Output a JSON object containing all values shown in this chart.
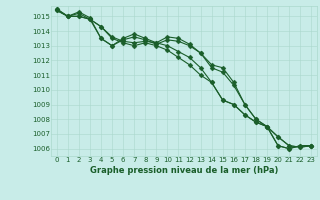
{
  "title": "Graphe pression niveau de la mer (hPa)",
  "background_color": "#c8ece8",
  "grid_color": "#aad8cc",
  "line_color": "#1a5e2a",
  "marker_color": "#1a5e2a",
  "ylim": [
    1005.5,
    1015.7
  ],
  "xlim": [
    -0.5,
    23.5
  ],
  "yticks": [
    1006,
    1007,
    1008,
    1009,
    1010,
    1011,
    1012,
    1013,
    1014,
    1015
  ],
  "xticks": [
    0,
    1,
    2,
    3,
    4,
    5,
    6,
    7,
    8,
    9,
    10,
    11,
    12,
    13,
    14,
    15,
    16,
    17,
    18,
    19,
    20,
    21,
    22,
    23
  ],
  "series": [
    [
      1015.4,
      1015.0,
      1015.0,
      1014.8,
      1014.3,
      1013.6,
      1013.3,
      1013.2,
      1013.3,
      1013.2,
      1013.0,
      1012.6,
      1012.2,
      1011.5,
      1010.5,
      1009.3,
      1009.0,
      1008.3,
      1007.8,
      1007.5,
      1006.2,
      1006.0,
      1006.2,
      1006.2
    ],
    [
      1015.5,
      1015.0,
      1015.3,
      1014.9,
      1013.5,
      1013.0,
      1013.5,
      1013.8,
      1013.5,
      1013.2,
      1013.6,
      1013.5,
      1013.1,
      1012.5,
      1011.7,
      1011.5,
      1010.5,
      1009.0,
      1008.0,
      1007.5,
      1006.8,
      1006.2,
      1006.1,
      1006.2
    ],
    [
      1015.4,
      1015.0,
      1015.0,
      1014.8,
      1014.3,
      1013.5,
      1013.2,
      1013.0,
      1013.2,
      1013.0,
      1012.7,
      1012.2,
      1011.7,
      1011.0,
      1010.5,
      1009.3,
      1009.0,
      1008.3,
      1007.8,
      1007.5,
      1006.2,
      1006.0,
      1006.2,
      1006.2
    ],
    [
      1015.5,
      1015.0,
      1015.2,
      1014.8,
      1013.5,
      1013.0,
      1013.4,
      1013.6,
      1013.4,
      1013.1,
      1013.4,
      1013.3,
      1013.0,
      1012.5,
      1011.5,
      1011.2,
      1010.3,
      1009.0,
      1008.0,
      1007.5,
      1006.8,
      1006.2,
      1006.1,
      1006.2
    ]
  ],
  "marker_size": 2.5,
  "line_width": 0.8,
  "tick_fontsize": 5.0,
  "title_fontsize": 6.0
}
